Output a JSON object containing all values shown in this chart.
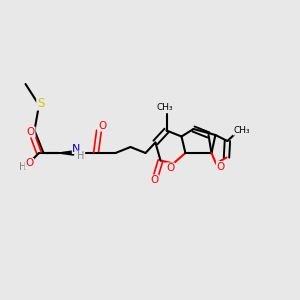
{
  "bg_color": "#e8e8e8",
  "fig_width": 3.0,
  "fig_height": 3.0,
  "dpi": 100,
  "bond_color": "#000000",
  "bond_width": 1.5,
  "atom_colors": {
    "O": "#ff0000",
    "N": "#0000cc",
    "S": "#cccc00",
    "C": "#000000",
    "H": "#808080"
  },
  "font_size": 7.5
}
